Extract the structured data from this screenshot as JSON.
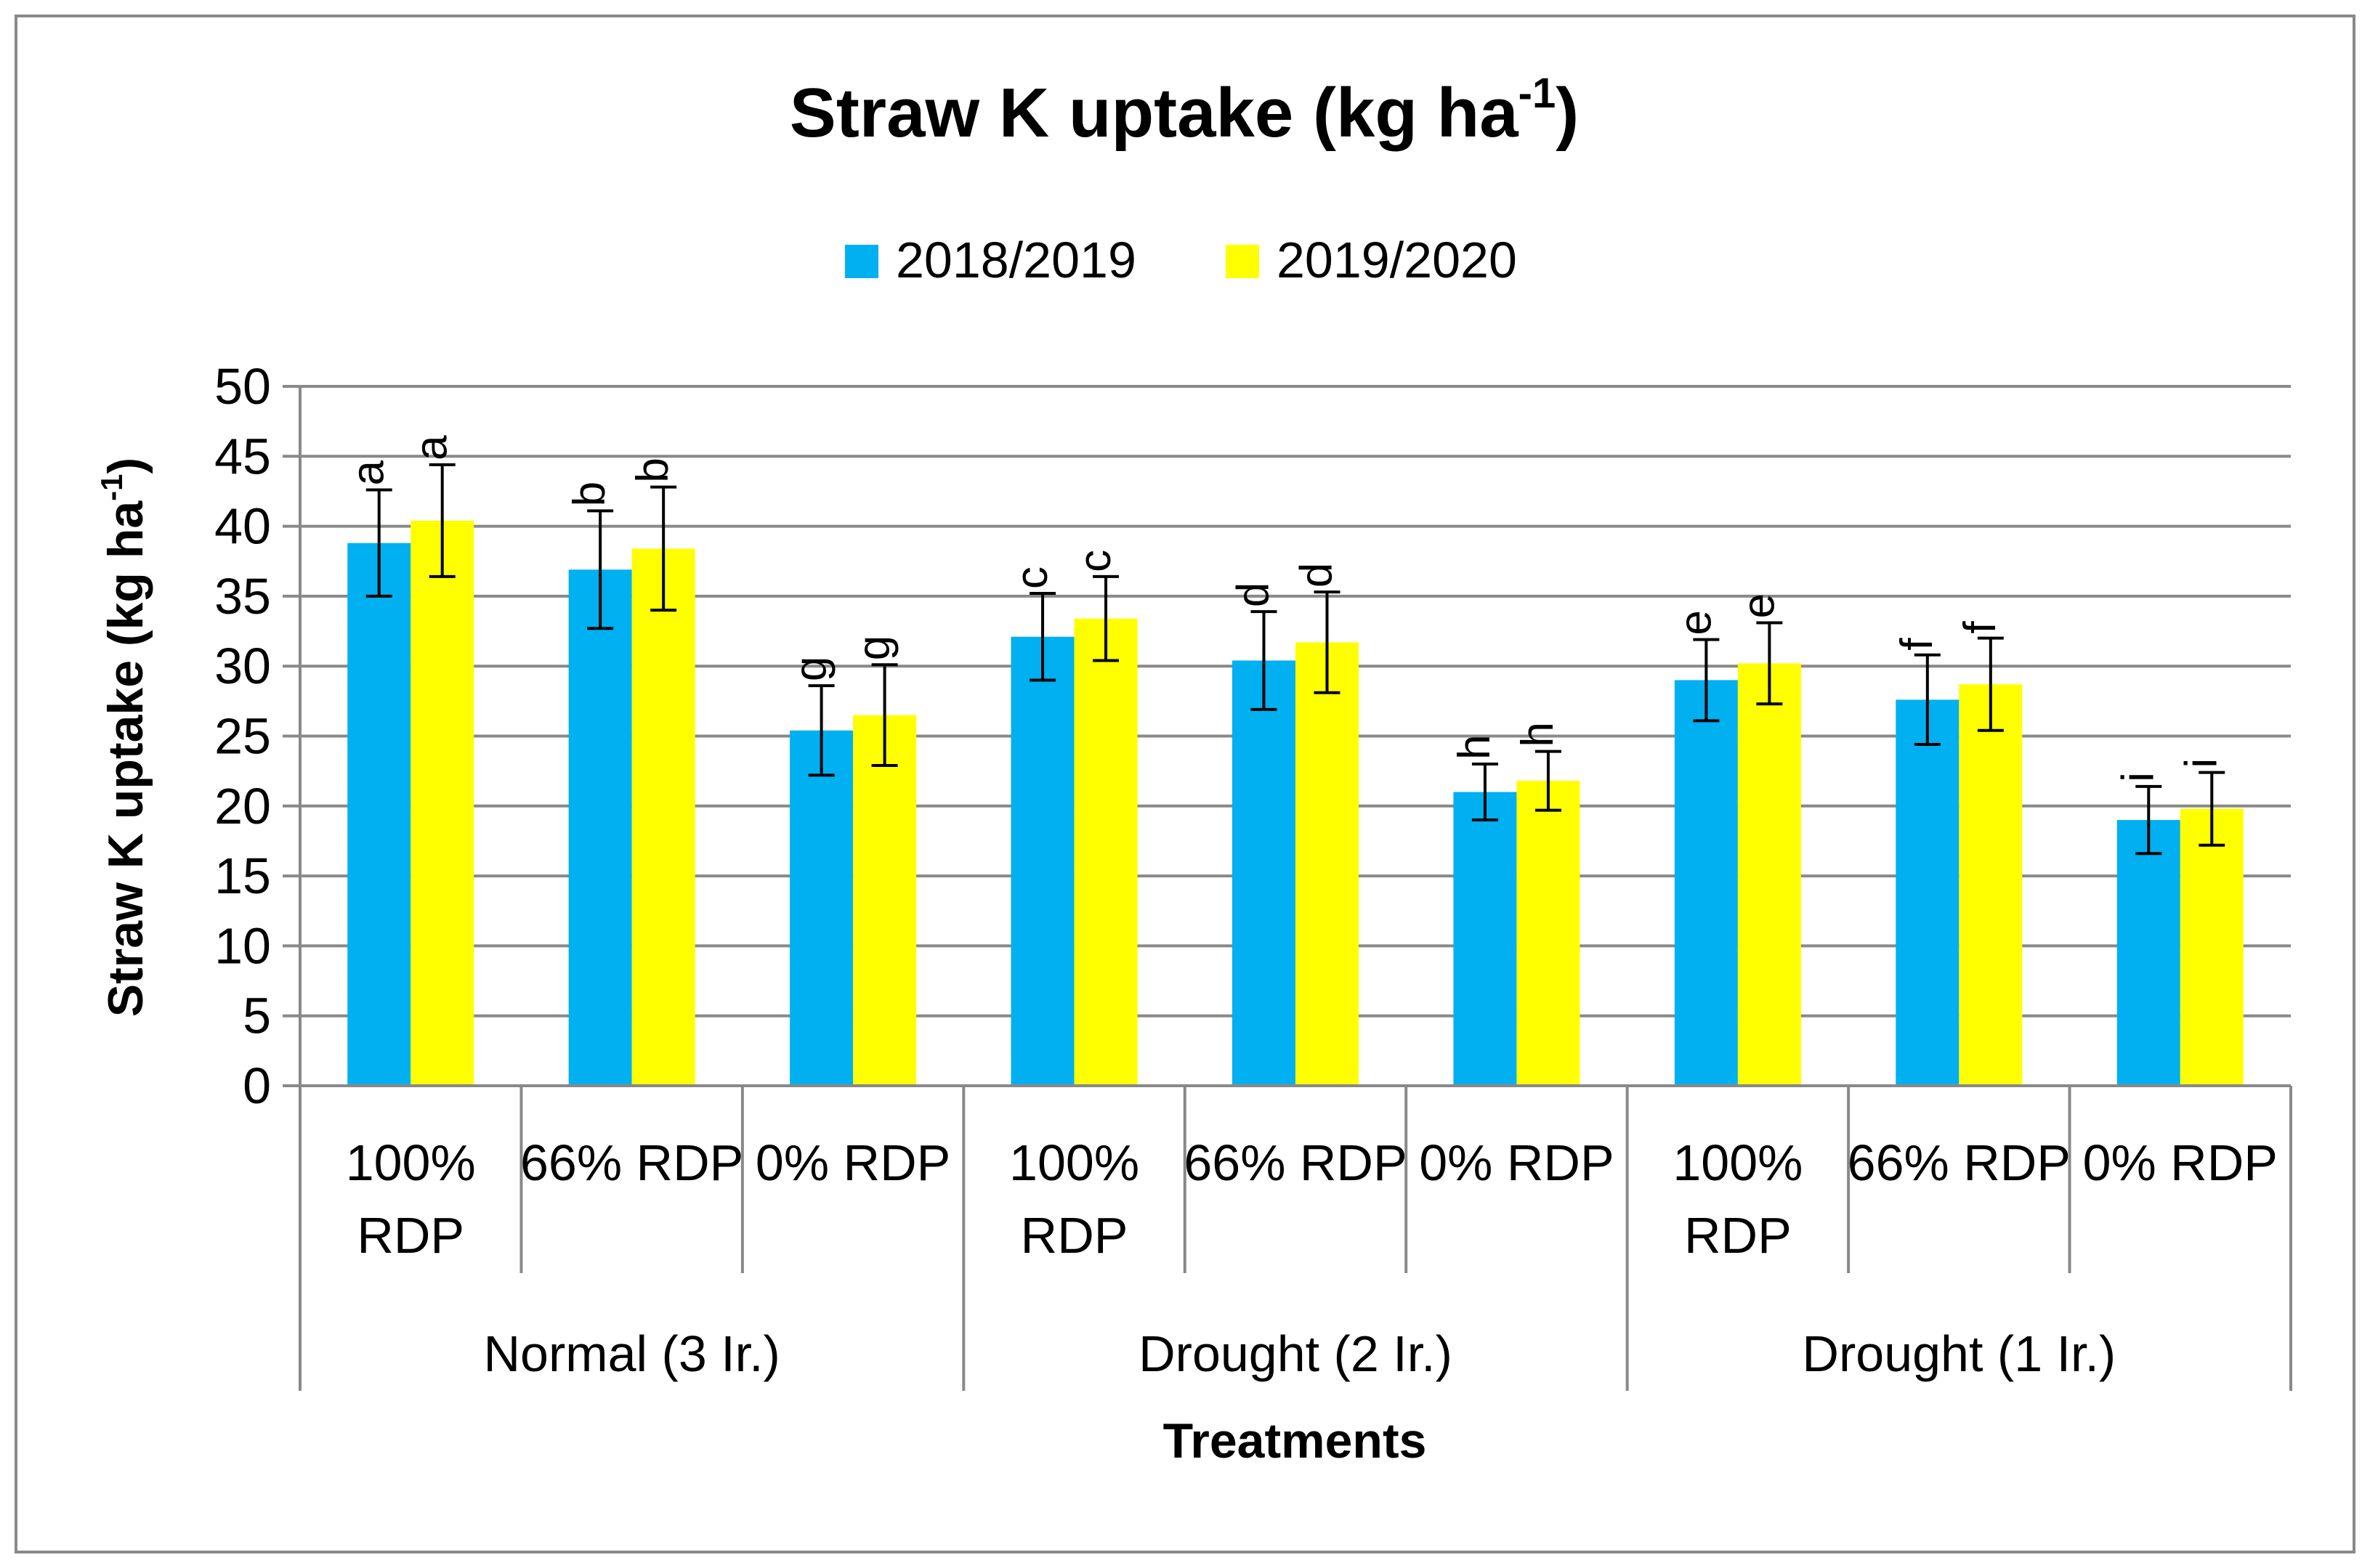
{
  "chart_data": {
    "type": "bar",
    "title": "Straw K uptake (kg ha",
    "title_superscript": "-1",
    "title_close": ")",
    "ylabel": "Straw K uptake (kg ha",
    "ylabel_superscript": "-1",
    "ylabel_close": ")",
    "xlabel": "Treatments",
    "ylim": [
      0,
      50
    ],
    "yticks": [
      "0",
      "5",
      "10",
      "15",
      "20",
      "25",
      "30",
      "35",
      "40",
      "45",
      "50"
    ],
    "grid": true,
    "legend_position": "top",
    "groups": [
      {
        "label": "Normal (3 Ir.)",
        "categories": [
          [
            "100%",
            "RDP"
          ],
          [
            "66% RDP"
          ],
          [
            "0% RDP"
          ]
        ]
      },
      {
        "label": "Drought (2 Ir.)",
        "categories": [
          [
            "100%",
            "RDP"
          ],
          [
            "66% RDP"
          ],
          [
            "0% RDP"
          ]
        ]
      },
      {
        "label": "Drought (1 Ir.)",
        "categories": [
          [
            "100%",
            "RDP"
          ],
          [
            "66% RDP"
          ],
          [
            "0% RDP"
          ]
        ]
      }
    ],
    "series": [
      {
        "name": "2018/2019",
        "color": "#00B0F0",
        "values": [
          38.8,
          36.9,
          25.4,
          32.1,
          30.4,
          21.0,
          29.0,
          27.6,
          19.0
        ],
        "errors": [
          3.8,
          4.2,
          3.2,
          3.1,
          3.5,
          2.0,
          2.9,
          3.2,
          2.4
        ],
        "labels": [
          "a",
          "b",
          "g",
          "c",
          "d",
          "h",
          "e",
          "f",
          "i"
        ]
      },
      {
        "name": "2019/2020",
        "color": "#FFFF00",
        "values": [
          40.4,
          38.4,
          26.5,
          33.4,
          31.7,
          21.8,
          30.2,
          28.7,
          19.8
        ],
        "errors": [
          4.0,
          4.4,
          3.6,
          3.0,
          3.6,
          2.1,
          2.9,
          3.3,
          2.6
        ],
        "labels": [
          "a",
          "b",
          "g",
          "c",
          "d",
          "h",
          "e",
          "f",
          "i"
        ]
      }
    ]
  }
}
